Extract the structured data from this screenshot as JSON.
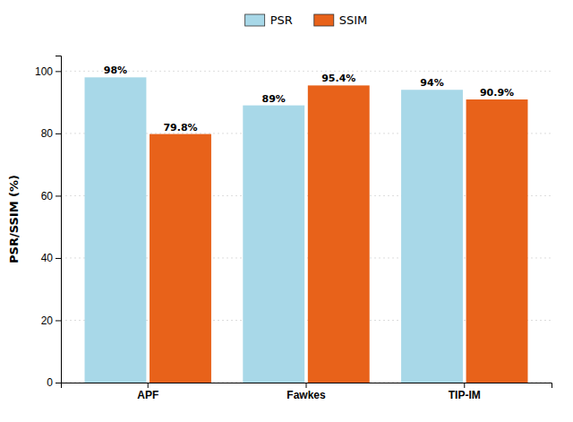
{
  "chart_data": {
    "type": "bar",
    "categories": [
      "APF",
      "Fawkes",
      "TIP-IM"
    ],
    "series": [
      {
        "name": "PSR",
        "color": "#a8d8e8",
        "values": [
          98,
          89,
          94
        ],
        "value_labels": [
          "98%",
          "89%",
          "94%"
        ]
      },
      {
        "name": "SSIM",
        "color": "#e8621a",
        "values": [
          79.8,
          95.4,
          90.9
        ],
        "value_labels": [
          "79.8%",
          "95.4%",
          "90.9%"
        ]
      }
    ],
    "ylabel": "PSR/SSIM (%)",
    "ylim": [
      0,
      105
    ],
    "yticks": [
      0,
      20,
      40,
      60,
      80,
      100
    ],
    "grid": true,
    "legend": "top",
    "data_labels": true
  }
}
